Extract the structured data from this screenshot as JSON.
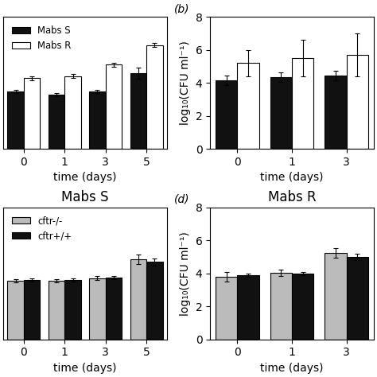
{
  "chart_data": [
    {
      "type": "bar",
      "xlabel": "time (days)",
      "categories": [
        "0",
        "1",
        "3",
        "5"
      ],
      "series": [
        {
          "name": "Mabs S",
          "color": "#111111",
          "values": [
            3.5,
            3.3,
            3.5,
            4.6
          ],
          "errors": [
            0.1,
            0.1,
            0.1,
            0.35
          ]
        },
        {
          "name": "Mabs R",
          "color": "#ffffff",
          "values": [
            4.3,
            4.4,
            5.1,
            6.3
          ],
          "errors": [
            0.12,
            0.12,
            0.12,
            0.12
          ]
        }
      ],
      "ylim": [
        0,
        8
      ],
      "tick_labels": "x",
      "legend": "upper left"
    },
    {
      "type": "bar",
      "annotations": [
        "(b)"
      ],
      "xlabel": "time (days)",
      "ylabel": "log₁₀(CFU ml⁻¹)",
      "categories": [
        "0",
        "1",
        "3"
      ],
      "series": [
        {
          "color": "#111111",
          "values": [
            4.15,
            4.35,
            4.45
          ],
          "errors": [
            0.3,
            0.3,
            0.3
          ]
        },
        {
          "color": "#ffffff",
          "values": [
            5.2,
            5.5,
            5.7
          ],
          "errors": [
            0.8,
            1.1,
            1.3
          ]
        }
      ],
      "ylim": [
        0,
        8
      ],
      "yticks": [
        0,
        2,
        4,
        6,
        8
      ]
    },
    {
      "type": "bar",
      "title": "Mabs S",
      "xlabel": "time (days)",
      "categories": [
        "0",
        "1",
        "3",
        "5"
      ],
      "series": [
        {
          "name": "cftr-/-",
          "color": "#bbbbbb",
          "values": [
            3.55,
            3.55,
            3.7,
            4.85
          ],
          "errors": [
            0.1,
            0.1,
            0.12,
            0.28
          ]
        },
        {
          "name": "cftr+/+",
          "color": "#111111",
          "values": [
            3.6,
            3.6,
            3.75,
            4.7
          ],
          "errors": [
            0.08,
            0.08,
            0.1,
            0.22
          ]
        }
      ],
      "ylim": [
        0,
        8
      ],
      "tick_labels": "x",
      "legend": "upper left"
    },
    {
      "type": "bar",
      "title": "Mabs R",
      "annotations": [
        "(d)"
      ],
      "xlabel": "time (days)",
      "ylabel": "log₁₀(CFU ml⁻¹)",
      "categories": [
        "0",
        "1",
        "3"
      ],
      "series": [
        {
          "color": "#bbbbbb",
          "values": [
            3.8,
            4.05,
            5.25
          ],
          "errors": [
            0.28,
            0.2,
            0.28
          ]
        },
        {
          "color": "#111111",
          "values": [
            3.9,
            4.0,
            5.0
          ],
          "errors": [
            0.1,
            0.1,
            0.18
          ]
        }
      ],
      "ylim": [
        0,
        8
      ],
      "yticks": [
        0,
        2,
        4,
        6,
        8
      ]
    }
  ]
}
